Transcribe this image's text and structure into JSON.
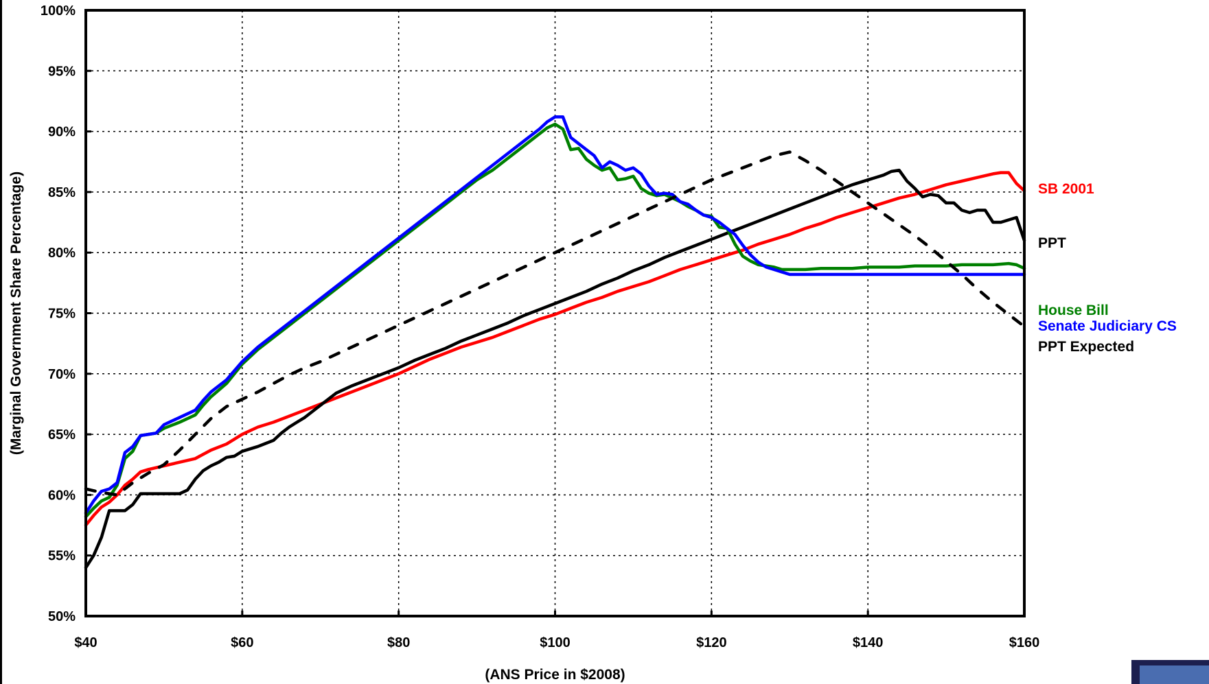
{
  "chart_data": {
    "type": "line",
    "xlabel": "(ANS Price in $2008)",
    "ylabel": "(Marginal Government Share Percentage)",
    "xlim": [
      40,
      160
    ],
    "ylim": [
      50,
      100
    ],
    "x_ticks": [
      40,
      60,
      80,
      100,
      120,
      140,
      160
    ],
    "y_ticks": [
      50,
      55,
      60,
      65,
      70,
      75,
      80,
      85,
      90,
      95,
      100
    ],
    "x_tick_labels": [
      "$40",
      "$60",
      "$80",
      "$100",
      "$120",
      "$140",
      "$160"
    ],
    "y_tick_labels": [
      "50%",
      "55%",
      "60%",
      "65%",
      "70%",
      "75%",
      "80%",
      "85%",
      "90%",
      "95%",
      "100%"
    ],
    "grid": true,
    "legend_placement": "right",
    "series": [
      {
        "name": "SB 2001",
        "color": "#ff0000",
        "style": "solid",
        "x": [
          40,
          41,
          42,
          43,
          44,
          45,
          46,
          47,
          48,
          50,
          52,
          54,
          56,
          58,
          60,
          62,
          64,
          66,
          68,
          70,
          72,
          74,
          76,
          78,
          80,
          82,
          84,
          86,
          88,
          90,
          92,
          94,
          96,
          98,
          100,
          102,
          104,
          106,
          108,
          110,
          112,
          114,
          116,
          118,
          120,
          122,
          124,
          126,
          128,
          130,
          132,
          134,
          136,
          138,
          140,
          142,
          144,
          146,
          148,
          150,
          152,
          154,
          156,
          157,
          158,
          159,
          160
        ],
        "values": [
          57.5,
          58.3,
          59.0,
          59.4,
          60.0,
          60.8,
          61.3,
          61.9,
          62.1,
          62.4,
          62.7,
          63.0,
          63.7,
          64.2,
          65.0,
          65.6,
          66.0,
          66.5,
          67.0,
          67.5,
          68.0,
          68.5,
          69.0,
          69.5,
          70.0,
          70.6,
          71.2,
          71.7,
          72.2,
          72.6,
          73.0,
          73.5,
          74.0,
          74.5,
          74.9,
          75.4,
          75.9,
          76.3,
          76.8,
          77.2,
          77.6,
          78.1,
          78.6,
          79.0,
          79.4,
          79.8,
          80.2,
          80.7,
          81.1,
          81.5,
          82.0,
          82.4,
          82.9,
          83.3,
          83.7,
          84.1,
          84.5,
          84.8,
          85.2,
          85.6,
          85.9,
          86.2,
          86.5,
          86.6,
          86.6,
          85.7,
          85.1
        ]
      },
      {
        "name": "PPT",
        "color": "#000000",
        "style": "solid",
        "x": [
          40,
          41,
          42,
          43,
          44,
          45,
          46,
          47,
          48,
          50,
          52,
          53,
          54,
          55,
          56,
          57,
          58,
          59,
          60,
          62,
          64,
          65,
          66,
          67,
          68,
          69,
          70,
          72,
          74,
          76,
          78,
          80,
          82,
          84,
          86,
          88,
          90,
          92,
          94,
          96,
          98,
          100,
          102,
          104,
          106,
          108,
          110,
          112,
          114,
          116,
          118,
          120,
          122,
          124,
          126,
          128,
          130,
          132,
          134,
          136,
          138,
          140,
          142,
          143,
          144,
          145,
          146,
          147,
          148,
          149,
          150,
          151,
          152,
          153,
          154,
          155,
          156,
          157,
          158,
          159,
          160
        ],
        "values": [
          54.0,
          55.0,
          56.5,
          58.7,
          58.7,
          58.7,
          59.2,
          60.1,
          60.1,
          60.1,
          60.1,
          60.4,
          61.3,
          62.0,
          62.4,
          62.7,
          63.1,
          63.2,
          63.6,
          64.0,
          64.5,
          65.1,
          65.6,
          66.0,
          66.4,
          66.9,
          67.4,
          68.4,
          69.0,
          69.5,
          70.0,
          70.5,
          71.1,
          71.6,
          72.1,
          72.7,
          73.2,
          73.7,
          74.2,
          74.8,
          75.3,
          75.8,
          76.3,
          76.8,
          77.4,
          77.9,
          78.5,
          79.0,
          79.6,
          80.1,
          80.6,
          81.1,
          81.6,
          82.1,
          82.6,
          83.1,
          83.6,
          84.1,
          84.6,
          85.1,
          85.6,
          86.0,
          86.4,
          86.7,
          86.8,
          85.9,
          85.3,
          84.6,
          84.8,
          84.7,
          84.1,
          84.1,
          83.5,
          83.3,
          83.5,
          83.5,
          82.5,
          82.5,
          82.7,
          82.9,
          81.0
        ]
      },
      {
        "name": "House Bill",
        "color": "#008000",
        "style": "solid",
        "x": [
          40,
          41,
          42,
          43,
          44,
          45,
          46,
          47,
          48,
          49,
          50,
          52,
          54,
          55,
          56,
          58,
          60,
          62,
          64,
          66,
          68,
          70,
          72,
          74,
          76,
          78,
          80,
          82,
          84,
          86,
          88,
          90,
          92,
          94,
          96,
          98,
          99,
          100,
          101,
          102,
          103,
          104,
          105,
          106,
          107,
          108,
          109,
          110,
          111,
          112,
          113,
          114,
          115,
          116,
          117,
          118,
          119,
          120,
          121,
          122,
          123,
          124,
          125,
          126,
          127,
          128,
          129,
          130,
          132,
          134,
          136,
          138,
          140,
          142,
          144,
          146,
          148,
          150,
          152,
          154,
          156,
          158,
          159,
          160
        ],
        "values": [
          58.2,
          58.9,
          59.5,
          59.8,
          60.8,
          63.0,
          63.6,
          64.9,
          65.0,
          65.1,
          65.5,
          66.0,
          66.6,
          67.4,
          68.1,
          69.2,
          70.8,
          72.0,
          73.0,
          74.0,
          75.0,
          76.0,
          77.0,
          78.0,
          79.0,
          80.0,
          81.0,
          82.0,
          83.0,
          84.0,
          85.0,
          86.0,
          86.8,
          87.8,
          88.8,
          89.8,
          90.3,
          90.6,
          90.2,
          88.5,
          88.6,
          87.7,
          87.2,
          86.8,
          87.0,
          86.0,
          86.1,
          86.3,
          85.3,
          84.9,
          84.7,
          84.8,
          84.5,
          84.2,
          83.8,
          83.5,
          83.1,
          83.0,
          82.1,
          82.0,
          80.7,
          79.7,
          79.3,
          79.0,
          78.9,
          78.8,
          78.6,
          78.6,
          78.6,
          78.7,
          78.7,
          78.7,
          78.8,
          78.8,
          78.8,
          78.9,
          78.9,
          78.9,
          79.0,
          79.0,
          79.0,
          79.1,
          79.0,
          78.7
        ]
      },
      {
        "name": "Senate Judiciary CS",
        "color": "#0000ff",
        "style": "solid",
        "x": [
          40,
          41,
          42,
          43,
          44,
          45,
          46,
          47,
          48,
          49,
          50,
          52,
          54,
          55,
          56,
          58,
          60,
          62,
          64,
          66,
          68,
          70,
          72,
          74,
          76,
          78,
          80,
          82,
          84,
          86,
          88,
          90,
          92,
          94,
          96,
          98,
          99,
          100,
          101,
          102,
          103,
          104,
          105,
          106,
          107,
          108,
          109,
          110,
          111,
          112,
          113,
          114,
          115,
          116,
          117,
          118,
          119,
          120,
          121,
          122,
          123,
          124,
          125,
          126,
          127,
          128,
          129,
          130,
          135,
          140,
          145,
          150,
          155,
          160
        ],
        "values": [
          58.5,
          59.5,
          60.3,
          60.5,
          61.0,
          63.5,
          64.0,
          64.9,
          65.0,
          65.1,
          65.8,
          66.4,
          67.0,
          67.8,
          68.5,
          69.5,
          71.0,
          72.2,
          73.2,
          74.2,
          75.2,
          76.2,
          77.2,
          78.2,
          79.2,
          80.2,
          81.2,
          82.2,
          83.2,
          84.2,
          85.2,
          86.2,
          87.2,
          88.2,
          89.2,
          90.2,
          90.8,
          91.2,
          91.2,
          89.5,
          89.0,
          88.5,
          88.0,
          87.0,
          87.5,
          87.2,
          86.8,
          87.0,
          86.5,
          85.5,
          84.8,
          84.9,
          84.8,
          84.2,
          84.0,
          83.5,
          83.1,
          82.9,
          82.5,
          82.0,
          81.5,
          80.6,
          79.8,
          79.2,
          78.8,
          78.6,
          78.4,
          78.2,
          78.2,
          78.2,
          78.2,
          78.2,
          78.2,
          78.2
        ]
      },
      {
        "name": "PPT Expected",
        "color": "#000000",
        "style": "dashed",
        "x": [
          40,
          42,
          44,
          46,
          48,
          50,
          52,
          54,
          56,
          58,
          60,
          62,
          64,
          66,
          68,
          70,
          72,
          74,
          76,
          78,
          80,
          82,
          84,
          86,
          88,
          90,
          92,
          94,
          96,
          98,
          100,
          102,
          104,
          106,
          108,
          110,
          112,
          114,
          116,
          118,
          120,
          122,
          124,
          126,
          128,
          130,
          132,
          134,
          136,
          138,
          140,
          142,
          144,
          146,
          148,
          150,
          152,
          154,
          156,
          158,
          160
        ],
        "values": [
          60.5,
          60.2,
          60.0,
          61.0,
          61.8,
          62.5,
          63.7,
          65.0,
          66.3,
          67.3,
          67.9,
          68.5,
          69.2,
          69.9,
          70.5,
          71.0,
          71.6,
          72.2,
          72.8,
          73.4,
          74.0,
          74.6,
          75.2,
          75.8,
          76.4,
          77.0,
          77.6,
          78.2,
          78.8,
          79.4,
          80.0,
          80.6,
          81.2,
          81.8,
          82.4,
          83.0,
          83.6,
          84.2,
          84.8,
          85.4,
          86.0,
          86.5,
          87.0,
          87.5,
          88.0,
          88.3,
          87.6,
          86.8,
          85.9,
          85.0,
          84.1,
          83.2,
          82.3,
          81.4,
          80.4,
          79.3,
          78.2,
          77.0,
          75.9,
          74.9,
          73.9
        ]
      }
    ]
  },
  "decor": {
    "corner_box_color": "#1c1f4f",
    "corner_box_inner_color": "#4a6db0"
  }
}
